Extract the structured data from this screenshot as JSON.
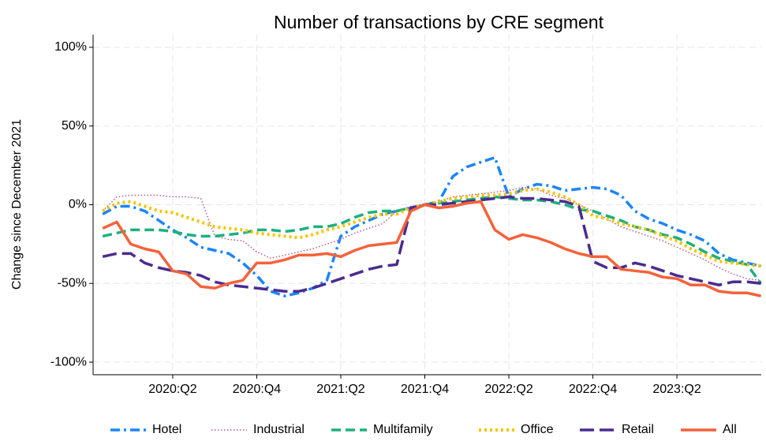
{
  "chart_data": {
    "type": "line",
    "title": "Number of transactions by CRE segment",
    "y_label": "Change since December 2021",
    "x": [
      2019.833,
      2019.917,
      2020.0,
      2020.083,
      2020.167,
      2020.25,
      2020.333,
      2020.417,
      2020.5,
      2020.583,
      2020.667,
      2020.75,
      2020.833,
      2020.917,
      2021.0,
      2021.083,
      2021.167,
      2021.25,
      2021.333,
      2021.417,
      2021.5,
      2021.583,
      2021.667,
      2021.75,
      2021.833,
      2021.917,
      2022.0,
      2022.083,
      2022.167,
      2022.25,
      2022.333,
      2022.417,
      2022.5,
      2022.583,
      2022.667,
      2022.75,
      2022.833,
      2022.917,
      2023.0,
      2023.083,
      2023.167,
      2023.25,
      2023.333,
      2023.417,
      2023.5,
      2023.583,
      2023.667,
      2023.75
    ],
    "series": [
      {
        "name": "Hotel",
        "color": "#1a85ff",
        "dash": "dashdot",
        "values": [
          -6,
          -1,
          -1,
          -4,
          -10,
          -16,
          -21,
          -27,
          -29,
          -31,
          -37,
          -45,
          -55,
          -58,
          -56,
          -53,
          -48,
          -20,
          -14,
          -10,
          -6,
          -4,
          -2,
          0,
          2,
          18,
          24,
          27,
          30,
          5,
          10,
          13,
          12,
          9,
          10,
          11,
          10,
          6,
          -4,
          -9,
          -12,
          -16,
          -19,
          -23,
          -31,
          -35,
          -37,
          -39
        ]
      },
      {
        "name": "Industrial",
        "color": "#b55a8a",
        "dash": "dotted",
        "values": [
          -4,
          5,
          6,
          6,
          6,
          5,
          5,
          4,
          -20,
          -22,
          -23,
          -30,
          -34,
          -32,
          -30,
          -28,
          -25,
          -22,
          -18,
          -15,
          -12,
          -4,
          -1,
          0,
          2,
          5,
          6,
          7,
          8,
          9,
          11,
          10,
          6,
          4,
          0,
          -4,
          -9,
          -14,
          -17,
          -20,
          -23,
          -27,
          -31,
          -35,
          -40,
          -44,
          -47,
          -48
        ]
      },
      {
        "name": "Multifamily",
        "color": "#1db07e",
        "dash": "dashed",
        "values": [
          -20,
          -18,
          -16,
          -16,
          -16,
          -17,
          -19,
          -20,
          -20,
          -19,
          -18,
          -16,
          -16,
          -17,
          -16,
          -14,
          -14,
          -12,
          -8,
          -5,
          -4,
          -4,
          -2,
          0,
          1,
          2,
          3,
          4,
          5,
          4,
          3,
          3,
          2,
          0,
          -3,
          -4,
          -7,
          -10,
          -14,
          -16,
          -19,
          -21,
          -25,
          -30,
          -34,
          -36,
          -38,
          -50
        ]
      },
      {
        "name": "Office",
        "color": "#f5c400",
        "dash": "dots",
        "values": [
          -4,
          1,
          2,
          -1,
          -4,
          -5,
          -8,
          -11,
          -14,
          -15,
          -16,
          -18,
          -19,
          -20,
          -21,
          -19,
          -16,
          -14,
          -11,
          -8,
          -6,
          -6,
          -2,
          0,
          2,
          4,
          5,
          6,
          6,
          7,
          9,
          10,
          8,
          5,
          0,
          -7,
          -9,
          -12,
          -14,
          -16,
          -20,
          -23,
          -28,
          -32,
          -36,
          -37,
          -38,
          -39
        ]
      },
      {
        "name": "Retail",
        "color": "#4b2b91",
        "dash": "longdash",
        "values": [
          -33,
          -31,
          -31,
          -37,
          -40,
          -42,
          -43,
          -45,
          -49,
          -51,
          -52,
          -53,
          -54,
          -55,
          -55,
          -53,
          -50,
          -47,
          -44,
          -41,
          -39,
          -38,
          -2,
          0,
          0,
          1,
          2,
          3,
          4,
          5,
          4,
          4,
          3,
          2,
          -1,
          -36,
          -40,
          -40,
          -37,
          -39,
          -42,
          -45,
          -47,
          -49,
          -51,
          -49,
          -49,
          -50
        ]
      },
      {
        "name": "All",
        "color": "#f4623a",
        "dash": "solid",
        "values": [
          -15,
          -11,
          -25,
          -28,
          -30,
          -42,
          -44,
          -52,
          -53,
          -50,
          -48,
          -37,
          -37,
          -35,
          -32,
          -32,
          -31,
          -33,
          -29,
          -26,
          -25,
          -24,
          -4,
          0,
          -2,
          -1,
          1,
          2,
          -16,
          -22,
          -19,
          -21,
          -24,
          -28,
          -31,
          -33,
          -33,
          -41,
          -42,
          -43,
          -46,
          -47,
          -51,
          -51,
          -55,
          -56,
          -56,
          -58
        ]
      }
    ],
    "xlim": [
      2019.776,
      2023.752
    ],
    "xticks": [
      {
        "value": 2020.25,
        "label": "2020:Q2"
      },
      {
        "value": 2020.75,
        "label": "2020:Q4"
      },
      {
        "value": 2021.25,
        "label": "2021:Q2"
      },
      {
        "value": 2021.75,
        "label": "2021:Q4"
      },
      {
        "value": 2022.25,
        "label": "2022:Q2"
      },
      {
        "value": 2022.75,
        "label": "2022:Q4"
      },
      {
        "value": 2023.25,
        "label": "2023:Q2"
      }
    ],
    "ylim": [
      -108,
      108
    ],
    "yticks": [
      {
        "value": 100,
        "label": "100%"
      },
      {
        "value": 50,
        "label": "50%"
      },
      {
        "value": 0,
        "label": "0%"
      },
      {
        "value": -50,
        "label": "-50%"
      },
      {
        "value": -100,
        "label": "-100%"
      }
    ],
    "grid": true,
    "legend": "bottom"
  }
}
